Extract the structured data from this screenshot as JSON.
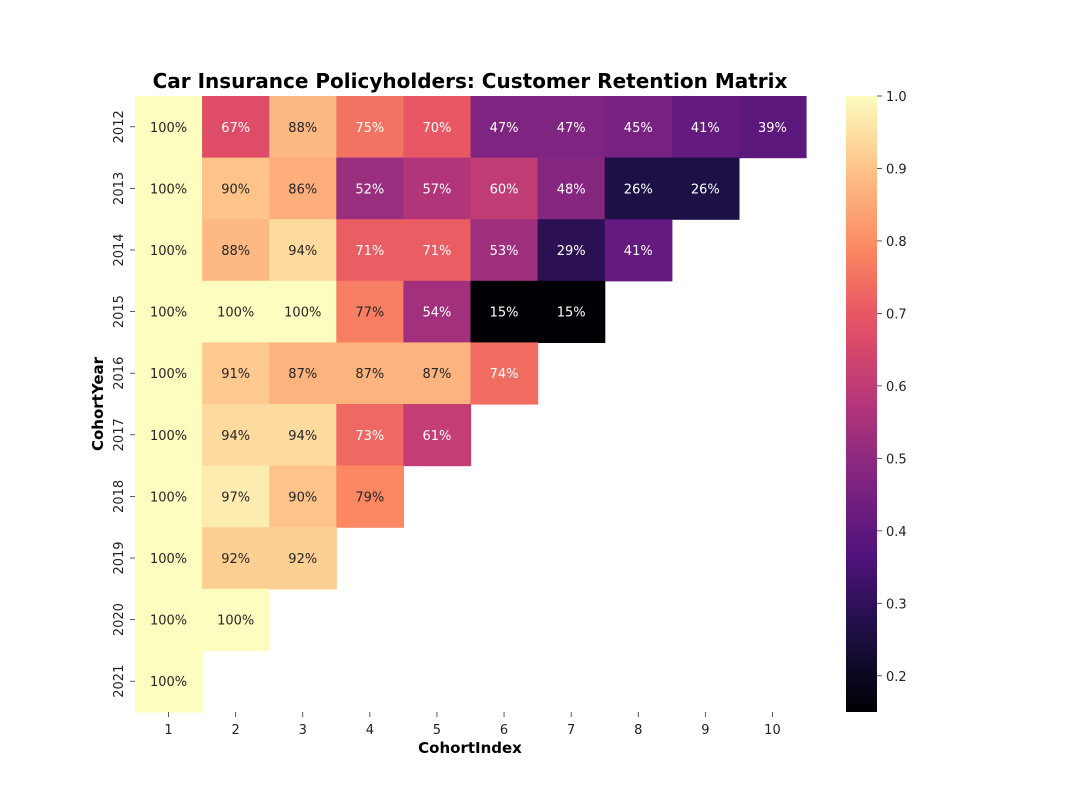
{
  "chart_data": {
    "type": "heatmap",
    "title": "Car Insurance Policyholders: Customer Retention Matrix",
    "xlabel": "CohortIndex",
    "ylabel": "CohortYear",
    "x_categories": [
      "1",
      "2",
      "3",
      "4",
      "5",
      "6",
      "7",
      "8",
      "9",
      "10"
    ],
    "y_categories": [
      "2012",
      "2013",
      "2014",
      "2015",
      "2016",
      "2017",
      "2018",
      "2019",
      "2020",
      "2021"
    ],
    "values": [
      [
        1.0,
        0.67,
        0.88,
        0.75,
        0.7,
        0.47,
        0.47,
        0.45,
        0.41,
        0.39
      ],
      [
        1.0,
        0.9,
        0.86,
        0.52,
        0.57,
        0.6,
        0.48,
        0.26,
        0.26,
        null
      ],
      [
        1.0,
        0.88,
        0.94,
        0.71,
        0.71,
        0.53,
        0.29,
        0.41,
        null,
        null
      ],
      [
        1.0,
        1.0,
        1.0,
        0.77,
        0.54,
        0.15,
        0.15,
        null,
        null,
        null
      ],
      [
        1.0,
        0.91,
        0.87,
        0.87,
        0.87,
        0.74,
        null,
        null,
        null,
        null
      ],
      [
        1.0,
        0.94,
        0.94,
        0.73,
        0.61,
        null,
        null,
        null,
        null,
        null
      ],
      [
        1.0,
        0.97,
        0.9,
        0.79,
        null,
        null,
        null,
        null,
        null,
        null
      ],
      [
        1.0,
        0.92,
        0.92,
        null,
        null,
        null,
        null,
        null,
        null,
        null
      ],
      [
        1.0,
        1.0,
        null,
        null,
        null,
        null,
        null,
        null,
        null,
        null
      ],
      [
        1.0,
        null,
        null,
        null,
        null,
        null,
        null,
        null,
        null,
        null
      ]
    ],
    "value_format": "percent",
    "colormap": "magma",
    "vmin": 0.15,
    "vmax": 1.0,
    "colorbar_ticks": [
      "0.2",
      "0.3",
      "0.4",
      "0.5",
      "0.6",
      "0.7",
      "0.8",
      "0.9",
      "1.0"
    ],
    "colorbar_tick_values": [
      0.2,
      0.3,
      0.4,
      0.5,
      0.6,
      0.7,
      0.8,
      0.9,
      1.0
    ],
    "colorbar_placement": "right",
    "grid": false
  }
}
